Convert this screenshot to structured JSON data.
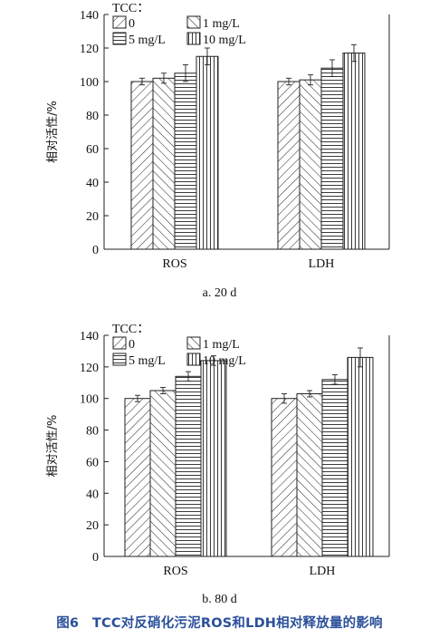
{
  "chart_data": [
    {
      "type": "bar",
      "subtitle": "a. 20 d",
      "ylabel": "相对活性/%",
      "ylim": [
        0,
        140
      ],
      "yticks": [
        "0",
        "20",
        "40",
        "60",
        "80",
        "100",
        "120",
        "140"
      ],
      "categories": [
        "ROS",
        "LDH"
      ],
      "legend_title": "TCC：",
      "series": [
        {
          "name": "0",
          "pattern": "hatch-up",
          "values": [
            100,
            100
          ],
          "errors": [
            2,
            2
          ]
        },
        {
          "name": "1 mg/L",
          "pattern": "hatch-down",
          "values": [
            102,
            101
          ],
          "errors": [
            3,
            3
          ]
        },
        {
          "name": "5 mg/L",
          "pattern": "horizontal",
          "values": [
            105,
            108
          ],
          "errors": [
            5,
            5
          ]
        },
        {
          "name": "10 mg/L",
          "pattern": "vertical",
          "values": [
            115,
            117
          ],
          "errors": [
            5,
            5
          ]
        }
      ]
    },
    {
      "type": "bar",
      "subtitle": "b. 80 d",
      "ylabel": "相对活性/%",
      "ylim": [
        0,
        140
      ],
      "yticks": [
        "0",
        "20",
        "40",
        "60",
        "80",
        "100",
        "120",
        "140"
      ],
      "categories": [
        "ROS",
        "LDH"
      ],
      "legend_title": "TCC：",
      "series": [
        {
          "name": "0",
          "pattern": "hatch-up",
          "values": [
            100,
            100
          ],
          "errors": [
            2,
            3
          ]
        },
        {
          "name": "1 mg/L",
          "pattern": "hatch-down",
          "values": [
            105,
            103
          ],
          "errors": [
            2,
            2
          ]
        },
        {
          "name": "5 mg/L",
          "pattern": "horizontal",
          "values": [
            114,
            112
          ],
          "errors": [
            3,
            3
          ]
        },
        {
          "name": "10 mg/L",
          "pattern": "vertical",
          "values": [
            124,
            126
          ],
          "errors": [
            3,
            6
          ]
        }
      ]
    }
  ],
  "figure_caption": "图6　TCC对反硝化污泥ROS和LDH相对释放量的影响",
  "colors": {
    "caption": "#2a4f9a",
    "bar_stroke": "#222222",
    "bar_fill": "#ffffff"
  }
}
